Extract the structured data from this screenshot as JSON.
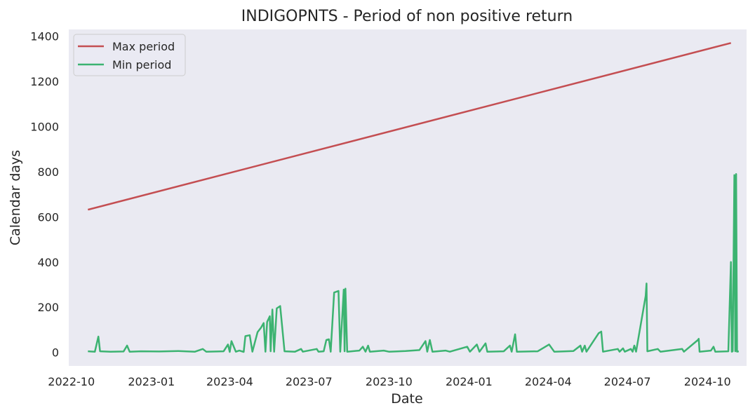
{
  "chart_data": {
    "type": "line",
    "title": "INDIGOPNTS - Period of non positive return",
    "xlabel": "Date",
    "ylabel": "Calendar days",
    "x_range": [
      "2022-09-28",
      "2024-11-15"
    ],
    "ylim": [
      -60,
      1430
    ],
    "grid": false,
    "legend_position": "top-left",
    "x_ticks": [
      "2022-10",
      "2023-01",
      "2023-04",
      "2023-07",
      "2023-10",
      "2024-01",
      "2024-04",
      "2024-07",
      "2024-10"
    ],
    "y_ticks": [
      0,
      200,
      400,
      600,
      800,
      1000,
      1200,
      1400
    ],
    "colors": {
      "background": "#eaeaf2",
      "max": "#c44e52",
      "min": "#3cb371"
    },
    "series": [
      {
        "name": "Max period",
        "color": "#c44e52",
        "points": [
          [
            "2022-10-20",
            632
          ],
          [
            "2024-10-28",
            1370
          ]
        ]
      },
      {
        "name": "Min period",
        "color": "#3cb371",
        "points": [
          [
            "2022-10-20",
            5
          ],
          [
            "2022-10-28",
            3
          ],
          [
            "2022-11-01",
            70
          ],
          [
            "2022-11-03",
            5
          ],
          [
            "2022-11-15",
            3
          ],
          [
            "2022-11-30",
            4
          ],
          [
            "2022-12-04",
            30
          ],
          [
            "2022-12-07",
            3
          ],
          [
            "2022-12-20",
            5
          ],
          [
            "2023-01-10",
            4
          ],
          [
            "2023-02-01",
            6
          ],
          [
            "2023-02-20",
            3
          ],
          [
            "2023-03-01",
            15
          ],
          [
            "2023-03-05",
            3
          ],
          [
            "2023-03-25",
            5
          ],
          [
            "2023-03-30",
            35
          ],
          [
            "2023-04-01",
            2
          ],
          [
            "2023-04-03",
            50
          ],
          [
            "2023-04-08",
            3
          ],
          [
            "2023-04-12",
            8
          ],
          [
            "2023-04-17",
            2
          ],
          [
            "2023-04-19",
            72
          ],
          [
            "2023-04-24",
            76
          ],
          [
            "2023-04-27",
            3
          ],
          [
            "2023-05-03",
            90
          ],
          [
            "2023-05-07",
            110
          ],
          [
            "2023-05-10",
            130
          ],
          [
            "2023-05-12",
            3
          ],
          [
            "2023-05-14",
            135
          ],
          [
            "2023-05-17",
            160
          ],
          [
            "2023-05-18",
            5
          ],
          [
            "2023-05-20",
            190
          ],
          [
            "2023-05-22",
            3
          ],
          [
            "2023-05-25",
            195
          ],
          [
            "2023-05-29",
            205
          ],
          [
            "2023-06-03",
            5
          ],
          [
            "2023-06-15",
            3
          ],
          [
            "2023-06-22",
            15
          ],
          [
            "2023-06-24",
            3
          ],
          [
            "2023-07-10",
            15
          ],
          [
            "2023-07-12",
            3
          ],
          [
            "2023-07-18",
            5
          ],
          [
            "2023-07-21",
            55
          ],
          [
            "2023-07-24",
            58
          ],
          [
            "2023-07-26",
            3
          ],
          [
            "2023-07-30",
            265
          ],
          [
            "2023-08-04",
            272
          ],
          [
            "2023-08-06",
            3
          ],
          [
            "2023-08-10",
            278
          ],
          [
            "2023-08-11",
            5
          ],
          [
            "2023-08-12",
            282
          ],
          [
            "2023-08-14",
            3
          ],
          [
            "2023-08-28",
            8
          ],
          [
            "2023-09-01",
            25
          ],
          [
            "2023-09-04",
            3
          ],
          [
            "2023-09-07",
            30
          ],
          [
            "2023-09-09",
            3
          ],
          [
            "2023-09-25",
            8
          ],
          [
            "2023-10-01",
            3
          ],
          [
            "2023-10-20",
            6
          ],
          [
            "2023-11-05",
            10
          ],
          [
            "2023-11-12",
            50
          ],
          [
            "2023-11-14",
            3
          ],
          [
            "2023-11-17",
            55
          ],
          [
            "2023-11-20",
            3
          ],
          [
            "2023-12-05",
            8
          ],
          [
            "2023-12-10",
            3
          ],
          [
            "2023-12-30",
            25
          ],
          [
            "2024-01-02",
            3
          ],
          [
            "2024-01-10",
            35
          ],
          [
            "2024-01-13",
            3
          ],
          [
            "2024-01-20",
            40
          ],
          [
            "2024-01-22",
            3
          ],
          [
            "2024-02-10",
            5
          ],
          [
            "2024-02-17",
            30
          ],
          [
            "2024-02-19",
            3
          ],
          [
            "2024-02-23",
            80
          ],
          [
            "2024-02-25",
            3
          ],
          [
            "2024-03-20",
            5
          ],
          [
            "2024-04-02",
            35
          ],
          [
            "2024-04-08",
            3
          ],
          [
            "2024-04-30",
            6
          ],
          [
            "2024-05-08",
            30
          ],
          [
            "2024-05-10",
            3
          ],
          [
            "2024-05-13",
            30
          ],
          [
            "2024-05-15",
            3
          ],
          [
            "2024-05-29",
            85
          ],
          [
            "2024-06-01",
            92
          ],
          [
            "2024-06-03",
            3
          ],
          [
            "2024-06-20",
            15
          ],
          [
            "2024-06-22",
            3
          ],
          [
            "2024-06-26",
            18
          ],
          [
            "2024-06-28",
            3
          ],
          [
            "2024-07-05",
            15
          ],
          [
            "2024-07-07",
            3
          ],
          [
            "2024-07-09",
            30
          ],
          [
            "2024-07-11",
            3
          ],
          [
            "2024-07-22",
            250
          ],
          [
            "2024-07-23",
            305
          ],
          [
            "2024-07-24",
            5
          ],
          [
            "2024-08-05",
            15
          ],
          [
            "2024-08-08",
            3
          ],
          [
            "2024-09-02",
            15
          ],
          [
            "2024-09-04",
            3
          ],
          [
            "2024-09-20",
            55
          ],
          [
            "2024-09-21",
            60
          ],
          [
            "2024-09-22",
            3
          ],
          [
            "2024-10-05",
            8
          ],
          [
            "2024-10-08",
            25
          ],
          [
            "2024-10-10",
            3
          ],
          [
            "2024-10-25",
            5
          ],
          [
            "2024-10-28",
            400
          ],
          [
            "2024-10-29",
            3
          ],
          [
            "2024-10-30",
            5
          ],
          [
            "2024-11-01",
            785
          ],
          [
            "2024-11-02",
            5
          ],
          [
            "2024-11-03",
            790
          ],
          [
            "2024-11-04",
            3
          ],
          [
            "2024-11-06",
            5
          ]
        ]
      }
    ]
  }
}
